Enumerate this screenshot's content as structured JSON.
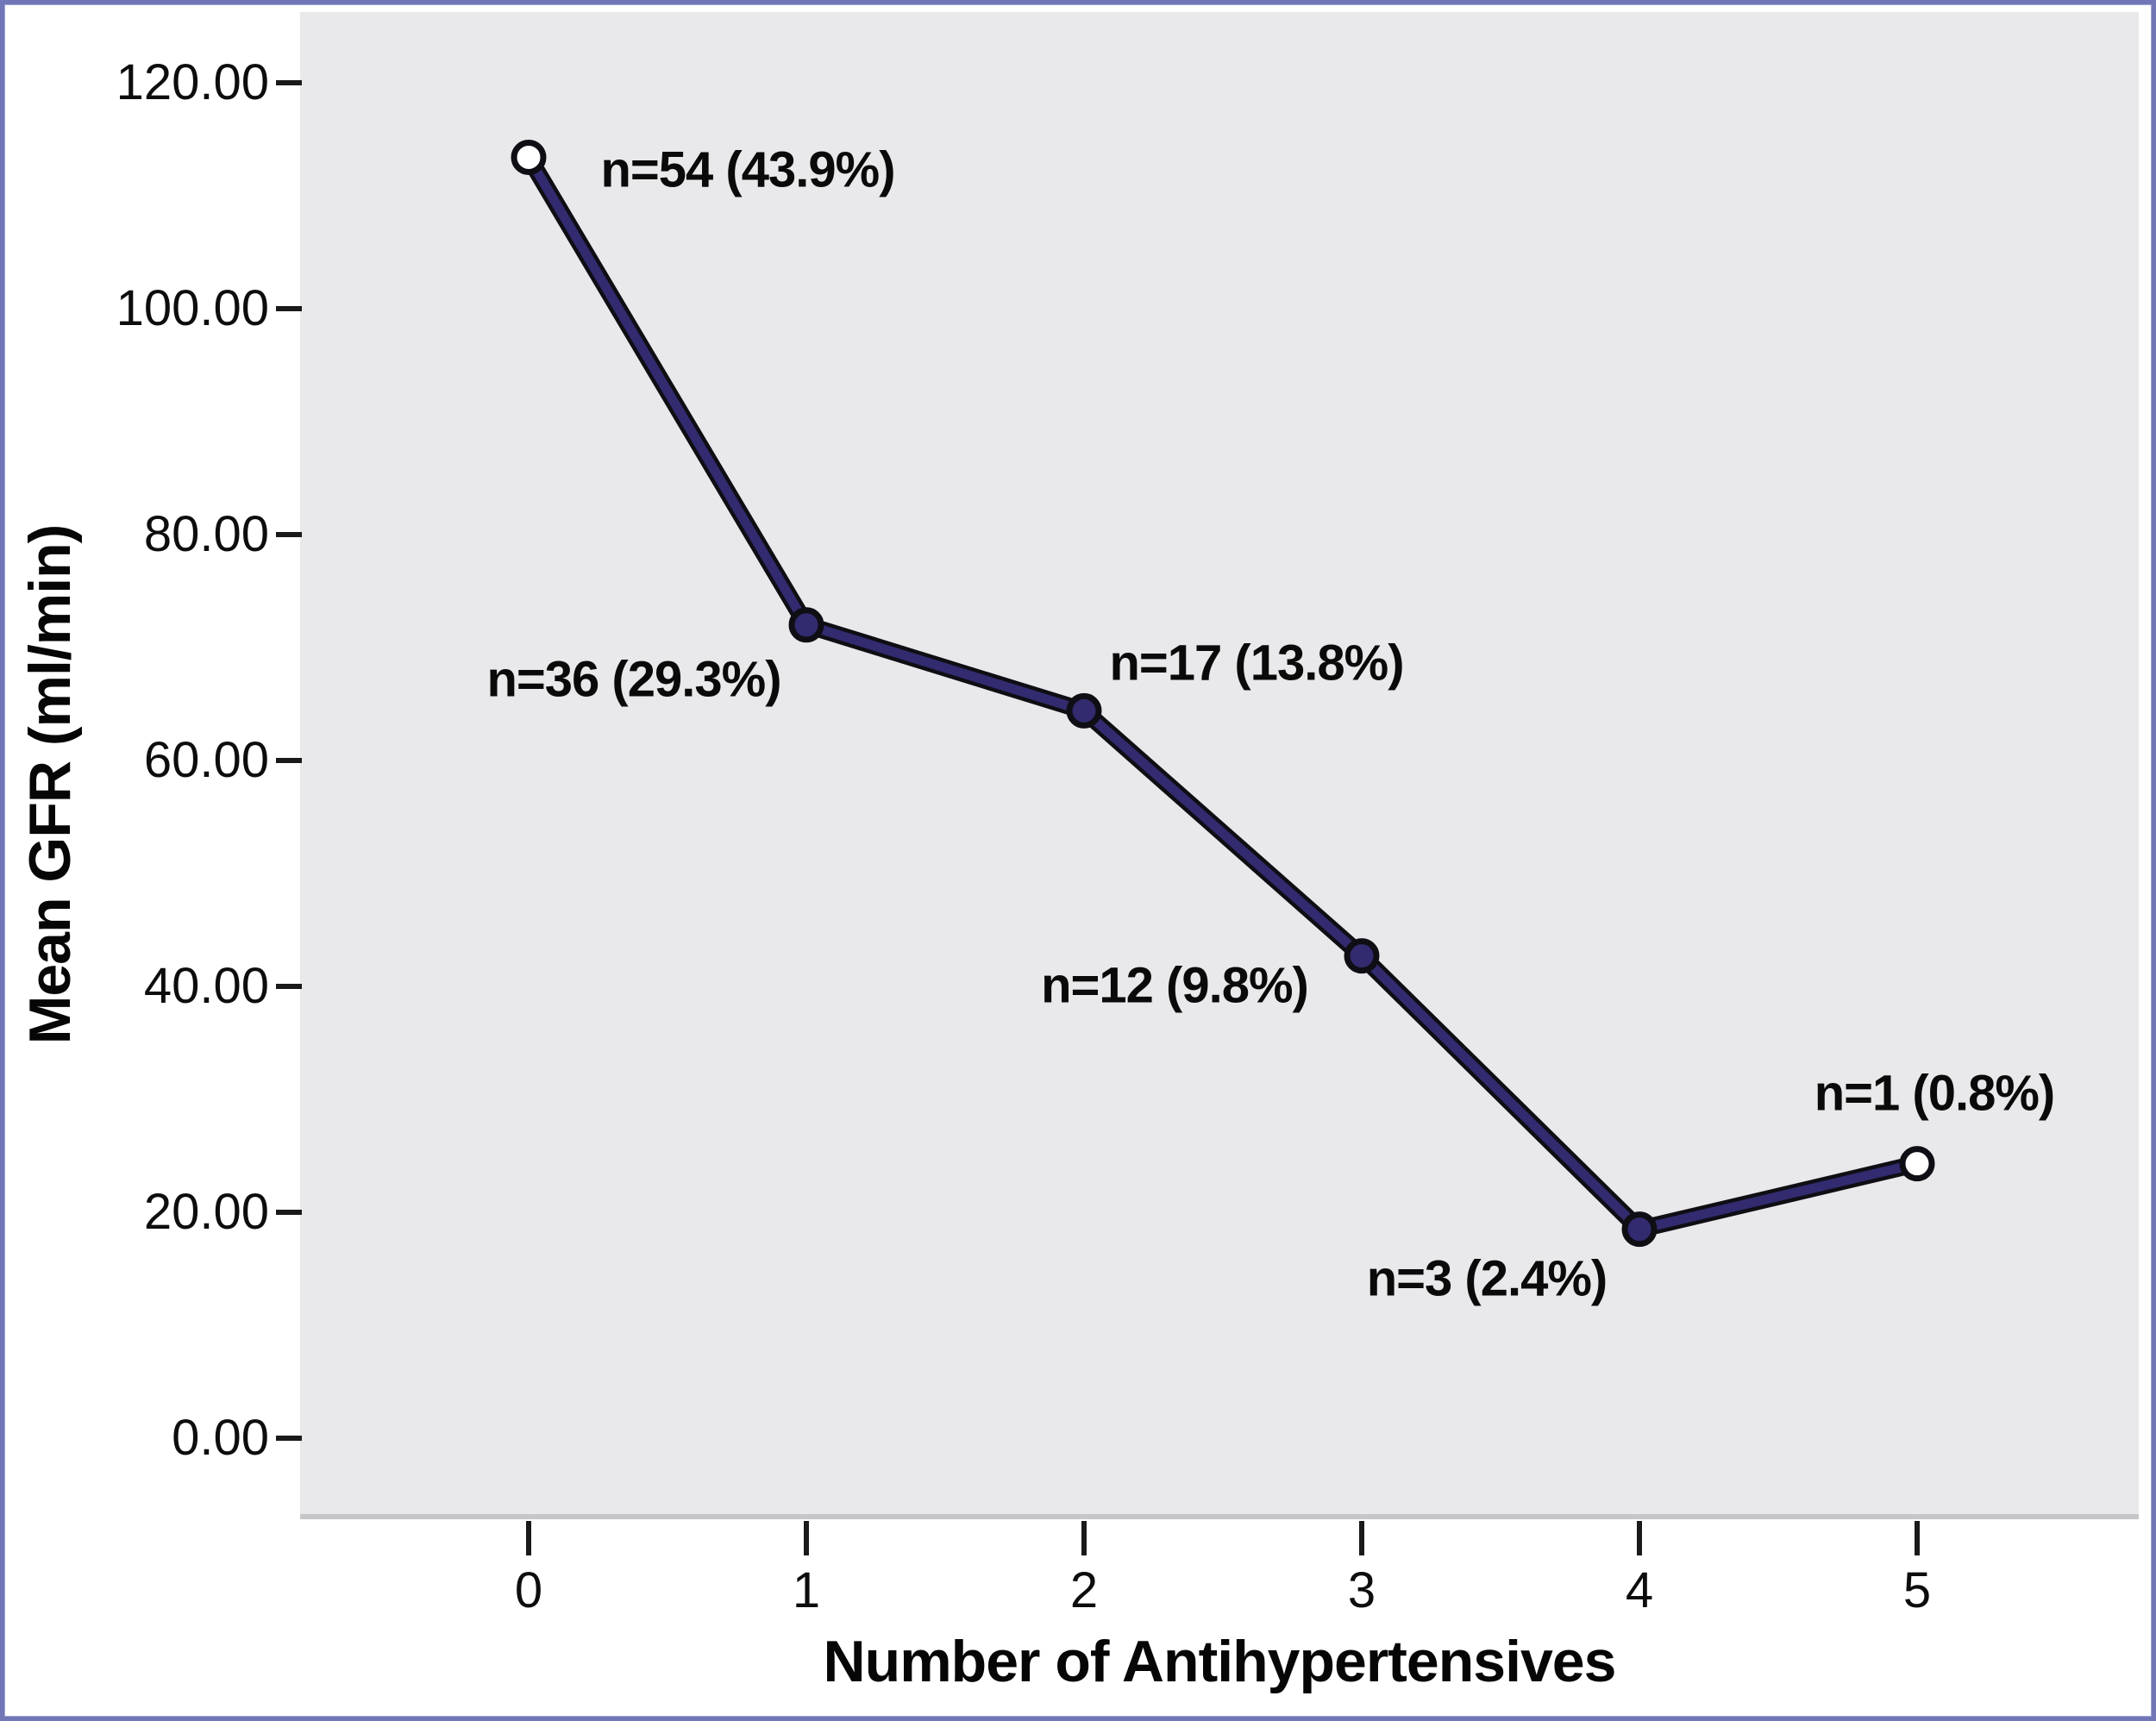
{
  "colors": {
    "frame_border": "#7176b6",
    "plot_background": "#e9e8ea",
    "axis_bevel": "#c6c5c8",
    "line": "#322b6f",
    "line_outline": "#0e0e14",
    "marker_fill_inner": "#322b6f",
    "marker_fill_end": "#ffffff",
    "text": "#0d0d0d"
  },
  "chart_data": {
    "type": "line",
    "title": "",
    "xlabel": "Number of Antihypertensives",
    "ylabel": "Mean GFR (ml/min)",
    "x": [
      0,
      1,
      2,
      3,
      4,
      5
    ],
    "series": [
      {
        "name": "Mean GFR (ml/min)",
        "values": [
          113.4,
          72.0,
          64.4,
          42.7,
          18.5,
          24.3
        ]
      }
    ],
    "point_labels": [
      "n=54 (43.9%)",
      "n=36 (29.3%)",
      "n=17 (13.8%)",
      "n=12 (9.8%)",
      "n=3 (2.4%)",
      "n=1 (0.8%)"
    ],
    "x_tick_labels": [
      "0",
      "1",
      "2",
      "3",
      "4",
      "5"
    ],
    "y_tick_labels": [
      "120.00",
      "100.00",
      "80.00",
      "60.00",
      "40.00",
      "20.00",
      "0.00"
    ],
    "y_tick_values": [
      120,
      100,
      80,
      60,
      40,
      20,
      0
    ],
    "xlim": [
      -0.82,
      0.82
    ],
    "ylim": [
      -7,
      126
    ],
    "grid": false,
    "legend": false,
    "marker": "circle"
  }
}
